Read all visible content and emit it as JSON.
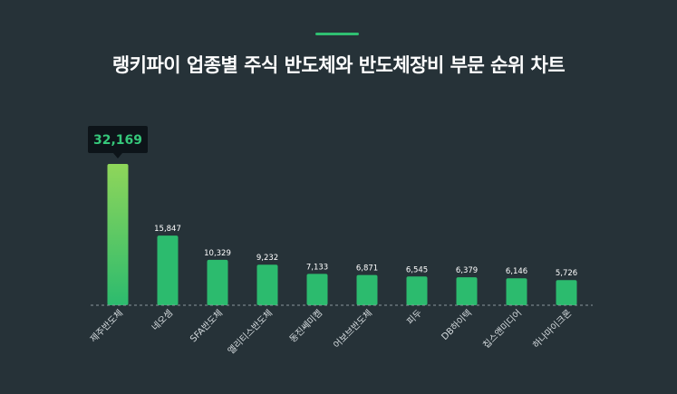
{
  "title": "랭키파이 업종별 주식 반도체와 반도체장비 부문 순위 차트",
  "colors": {
    "background": "#263238",
    "accent": "#2fbf71",
    "bar": "#2cbb6e",
    "bar_top_highlight": "#8fd65a",
    "tooltip_text": "#35c77a"
  },
  "chart_data": {
    "type": "bar",
    "categories": [
      "제주반도체",
      "네오셈",
      "SFA반도체",
      "엘리티스반도체",
      "동진쎄미켐",
      "어보브반도체",
      "피두",
      "DB하이텍",
      "칩스앤미디어",
      "하나마이크론"
    ],
    "values": [
      32169,
      15847,
      10329,
      9232,
      7133,
      6871,
      6545,
      6379,
      6146,
      5726
    ],
    "value_labels": [
      "32,169",
      "15,847",
      "10,329",
      "9,232",
      "7,133",
      "6,871",
      "6,545",
      "6,379",
      "6,146",
      "5,726"
    ],
    "highlighted_index": 0,
    "ylim": [
      0,
      32169
    ],
    "grid": false,
    "baseline": "dashed",
    "xlabel": "",
    "ylabel": ""
  }
}
